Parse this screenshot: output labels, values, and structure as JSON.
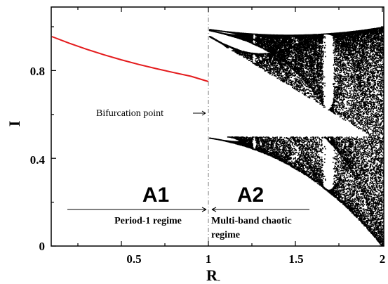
{
  "chart_data": {
    "type": "scatter",
    "title": "",
    "xlabel": "R",
    "xlabel_subscript": "-",
    "ylabel": "I",
    "xlim": [
      0.1,
      2.0
    ],
    "ylim": [
      0,
      1.05
    ],
    "xticks": [
      0.5,
      1,
      1.5,
      2
    ],
    "xtick_labels": [
      "0.5",
      "1",
      "1.5",
      "2"
    ],
    "yticks": [
      0,
      0.4,
      0.8
    ],
    "ytick_labels": [
      "0",
      "0.4",
      "0.8"
    ],
    "grid": false,
    "series": [
      {
        "type": "line",
        "color": "#e41a1c",
        "x": [
          0.1,
          0.2,
          0.3,
          0.4,
          0.5,
          0.6,
          0.7,
          0.8,
          0.9,
          1.0
        ],
        "y": [
          0.955,
          0.925,
          0.897,
          0.872,
          0.849,
          0.828,
          0.809,
          0.791,
          0.774,
          0.75
        ]
      },
      {
        "type": "scatter",
        "color": "#000000",
        "description_range_x": [
          1.0,
          2.0
        ],
        "y_range": [
          0.0,
          1.0
        ]
      }
    ],
    "annotations": {
      "bifurcation": "Bifurcation point",
      "region_a1": "A1",
      "region_a2": "A2",
      "regime_1": "Period-1 regime",
      "regime_2_line1": "Multi-band  chaotic",
      "regime_2_line2": "regime"
    },
    "bifurcation_x": 1.0
  }
}
